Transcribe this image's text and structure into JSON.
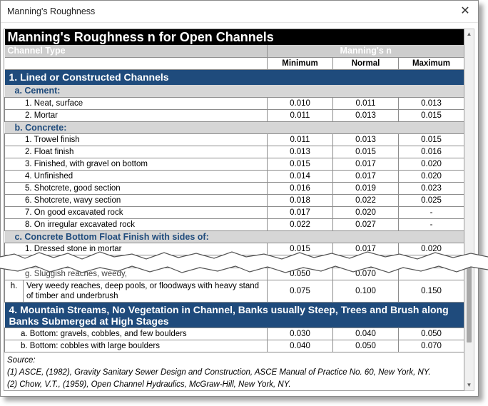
{
  "window": {
    "title": "Manning's Roughness",
    "close_symbol": "✕"
  },
  "table": {
    "title": "Manning's Roughness n for Open Channels",
    "col_channel_type": "Channel Type",
    "col_mannings_n": "Manning's n",
    "col_min": "Minimum",
    "col_normal": "Normal",
    "col_max": "Maximum"
  },
  "section1": {
    "title": "1. Lined or Constructed Channels",
    "sub_a": {
      "title": "a. Cement:",
      "rows": [
        {
          "name": "1. Neat, surface",
          "min": "0.010",
          "normal": "0.011",
          "max": "0.013"
        },
        {
          "name": "2. Mortar",
          "min": "0.011",
          "normal": "0.013",
          "max": "0.015"
        }
      ]
    },
    "sub_b": {
      "title": "b. Concrete:",
      "rows": [
        {
          "name": "1. Trowel finish",
          "min": "0.011",
          "normal": "0.013",
          "max": "0.015"
        },
        {
          "name": "2. Float finish",
          "min": "0.013",
          "normal": "0.015",
          "max": "0.016"
        },
        {
          "name": "3. Finished, with gravel on bottom",
          "min": "0.015",
          "normal": "0.017",
          "max": "0.020"
        },
        {
          "name": "4. Unfinished",
          "min": "0.014",
          "normal": "0.017",
          "max": "0.020"
        },
        {
          "name": "5. Shotcrete, good section",
          "min": "0.016",
          "normal": "0.019",
          "max": "0.023"
        },
        {
          "name": "6. Shotcrete, wavy section",
          "min": "0.018",
          "normal": "0.022",
          "max": "0.025"
        },
        {
          "name": "7. On good excavated rock",
          "min": "0.017",
          "normal": "0.020",
          "max": "-"
        },
        {
          "name": "8. On irregular excavated rock",
          "min": "0.022",
          "normal": "0.027",
          "max": "-"
        }
      ]
    },
    "sub_c": {
      "title": "c. Concrete Bottom Float Finish with sides of:",
      "rows": [
        {
          "name": "1. Dressed stone in mortar",
          "min": "0.015",
          "normal": "0.017",
          "max": "0.020"
        }
      ]
    }
  },
  "torn_row": {
    "name": "g. Sluggish reaches, weedy,",
    "min": "0.050",
    "normal": "0.070"
  },
  "row_h": {
    "letter": "h.",
    "name": "Very weedy reaches, deep pools, or floodways with heavy stand of timber and underbrush",
    "min": "0.075",
    "normal": "0.100",
    "max": "0.150"
  },
  "section4": {
    "title": "4. Mountain Streams, No Vegetation in Channel, Banks usually Steep, Trees and Brush along Banks Submerged at High Stages",
    "rows": [
      {
        "name": "a. Bottom: gravels, cobbles, and few boulders",
        "min": "0.030",
        "normal": "0.040",
        "max": "0.050"
      },
      {
        "name": "b. Bottom: cobbles with large boulders",
        "min": "0.040",
        "normal": "0.050",
        "max": "0.070"
      }
    ]
  },
  "source": {
    "label": "Source:",
    "line1": "(1) ASCE, (1982), Gravity Sanitary Sewer Design and Construction, ASCE Manual of Practice No. 60, New York, NY.",
    "line2": "(2) Chow, V.T., (1959), Open Channel Hydraulics, McGraw-Hill, New York, NY."
  },
  "colors": {
    "section_header": "#1f4b7c",
    "subsection_bg": "#d6d6d6",
    "title_bg": "#000000",
    "header_bg": "#cdcdcd"
  },
  "scroll": {
    "position_fraction": 0.85
  }
}
